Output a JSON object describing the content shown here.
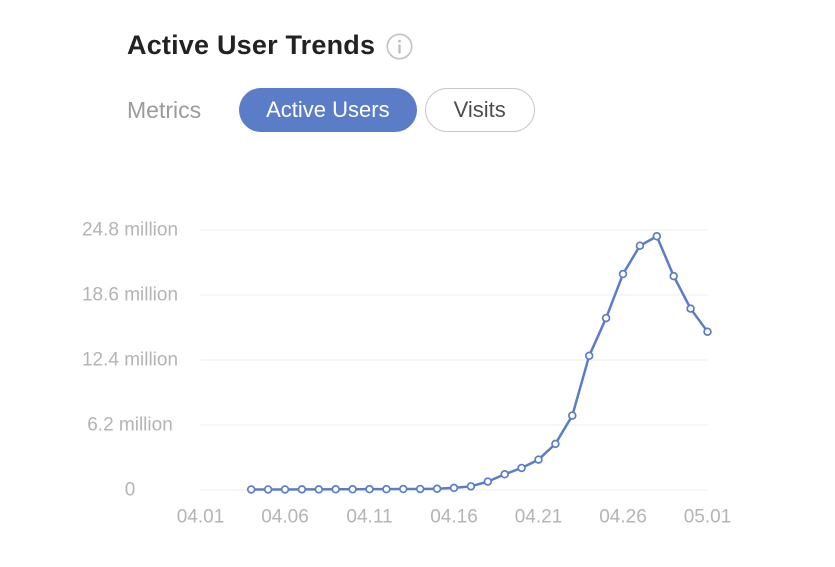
{
  "header": {
    "title": "Active User Trends"
  },
  "controls": {
    "label": "Metrics",
    "options": [
      {
        "label": "Active Users",
        "selected": true
      },
      {
        "label": "Visits",
        "selected": false
      }
    ]
  },
  "colors": {
    "accent": "#5B7DC7",
    "line": "#5B7DC7",
    "grid": "#ECECEC",
    "axis_label": "#B4B4B4",
    "title_text": "#222222",
    "muted_label": "#9B9B9B",
    "inactive_border": "#C6C6C6",
    "inactive_text": "#4D4D4D",
    "marker_fill": "#FFFFFF",
    "icon_gray": "#C2C2C2"
  },
  "chart_data": {
    "type": "line",
    "title": "Active User Trends",
    "unit": "million",
    "x_ticks": [
      "04.01",
      "04.06",
      "04.11",
      "04.16",
      "04.21",
      "04.26",
      "05.01"
    ],
    "y_ticks": [
      "24.8 million",
      "18.6 million",
      "12.4 million",
      "6.2 million",
      "0"
    ],
    "y_tick_values": [
      24.8,
      18.6,
      12.4,
      6.2,
      0
    ],
    "ylim": [
      0,
      24.8
    ],
    "xlim": [
      "04.01",
      "05.01"
    ],
    "grid": true,
    "legend_position": "none",
    "marker": "open-circle",
    "series": [
      {
        "name": "Active Users",
        "x": [
          "04.04",
          "04.05",
          "04.06",
          "04.07",
          "04.08",
          "04.09",
          "04.10",
          "04.11",
          "04.12",
          "04.13",
          "04.14",
          "04.15",
          "04.16",
          "04.17",
          "04.18",
          "04.19",
          "04.20",
          "04.21",
          "04.22",
          "04.23",
          "04.24",
          "04.25",
          "04.26",
          "04.27",
          "04.28",
          "04.29",
          "04.30",
          "05.01"
        ],
        "values": [
          0.05,
          0.05,
          0.05,
          0.06,
          0.06,
          0.07,
          0.07,
          0.08,
          0.08,
          0.09,
          0.1,
          0.12,
          0.2,
          0.35,
          0.8,
          1.5,
          2.1,
          2.9,
          4.4,
          7.1,
          12.8,
          16.4,
          20.6,
          23.3,
          24.2,
          20.4,
          17.3,
          15.1
        ]
      }
    ]
  }
}
